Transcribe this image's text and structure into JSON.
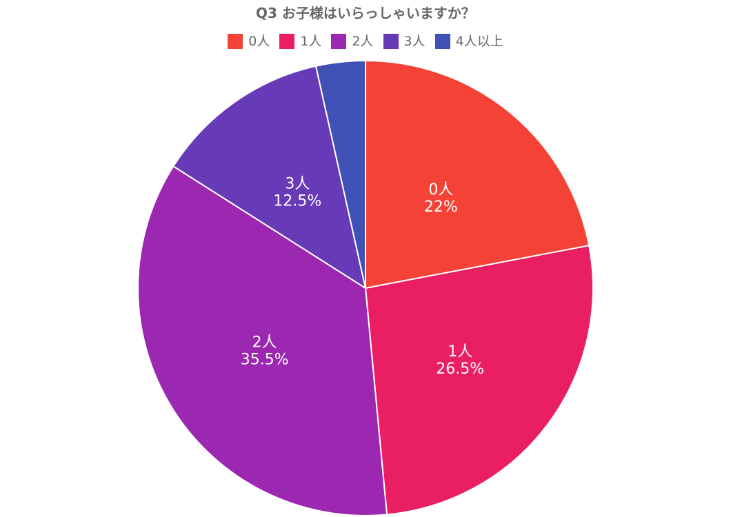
{
  "chart_data": {
    "type": "pie",
    "title": "Q3 お子様はいらっしゃいますか？",
    "legend_position": "top",
    "start_angle": "12 o'clock, clockwise",
    "slices": [
      {
        "label": "0人",
        "value": 22,
        "display": "22%",
        "color": "#F44336"
      },
      {
        "label": "1人",
        "value": 26.5,
        "display": "26.5%",
        "color": "#E91E63"
      },
      {
        "label": "2人",
        "value": 35.5,
        "display": "35.5%",
        "color": "#9C27B0"
      },
      {
        "label": "3人",
        "value": 12.5,
        "display": "12.5%",
        "color": "#673AB7"
      },
      {
        "label": "4人以上",
        "value": 3.5,
        "display": "",
        "color": "#3F51B5"
      }
    ]
  }
}
